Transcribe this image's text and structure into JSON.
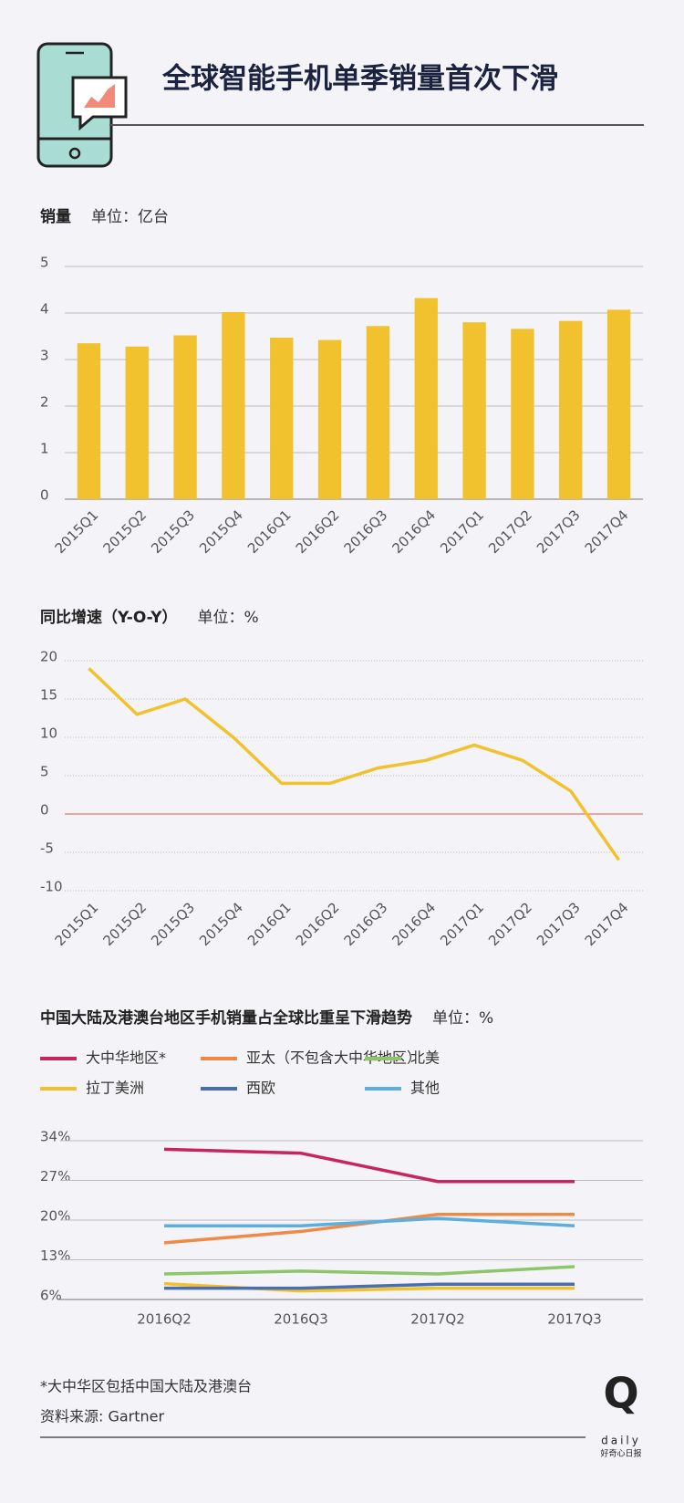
{
  "header": {
    "title": "全球智能手机单季销量首次下滑"
  },
  "chart_data": [
    {
      "type": "bar",
      "title": "销量",
      "subtitle": "单位：亿台",
      "categories": [
        "2015Q1",
        "2015Q2",
        "2015Q3",
        "2015Q4",
        "2016Q1",
        "2016Q2",
        "2016Q3",
        "2016Q4",
        "2017Q1",
        "2017Q2",
        "2017Q3",
        "2017Q4"
      ],
      "values": [
        3.35,
        3.28,
        3.52,
        4.02,
        3.47,
        3.42,
        3.72,
        4.32,
        3.8,
        3.66,
        3.83,
        4.07
      ],
      "color": "#f2c12e",
      "ylim": [
        0,
        5
      ],
      "yticks": [
        0,
        1,
        2,
        3,
        4,
        5
      ],
      "grid": true
    },
    {
      "type": "line",
      "title": "同比增速（Y-O-Y）",
      "subtitle": "单位：%",
      "categories": [
        "2015Q1",
        "2015Q2",
        "2015Q3",
        "2015Q4",
        "2016Q1",
        "2016Q2",
        "2016Q3",
        "2016Q4",
        "2017Q1",
        "2017Q2",
        "2017Q3",
        "2017Q4"
      ],
      "series": [
        {
          "color": "#f2c12e",
          "values": [
            19,
            13,
            15,
            10,
            4,
            4,
            6,
            7,
            9,
            7,
            3,
            -6
          ]
        }
      ],
      "ylim": [
        -10,
        20
      ],
      "yticks": [
        -10,
        -5,
        0,
        5,
        10,
        15,
        20
      ],
      "grid": true,
      "zero_line_color": "#d9534f"
    },
    {
      "type": "line",
      "title": "中国大陆及港澳台地区手机销量占全球比重呈下滑趋势",
      "subtitle": "单位：%",
      "categories": [
        "2016Q2",
        "2016Q3",
        "2017Q2",
        "2017Q3"
      ],
      "series": [
        {
          "name": "大中华地区*",
          "color": "#c8245e",
          "values": [
            32.5,
            31.8,
            26.8,
            26.8
          ]
        },
        {
          "name": "亚太（不包含大中华地区）",
          "color": "#ee8a45",
          "values": [
            16,
            18,
            21,
            21
          ]
        },
        {
          "name": "北美",
          "color": "#8dc66a",
          "values": [
            10.5,
            11,
            10.5,
            11.8
          ]
        },
        {
          "name": "拉丁美洲",
          "color": "#f2c12e",
          "values": [
            8.8,
            7.5,
            8,
            8
          ]
        },
        {
          "name": "西欧",
          "color": "#4a6fb0",
          "values": [
            8,
            8,
            8.7,
            8.7
          ]
        },
        {
          "name": "其他",
          "color": "#5aafe0",
          "values": [
            19,
            19,
            20.3,
            19
          ]
        }
      ],
      "ylim": [
        6,
        34
      ],
      "yticks": [
        {
          "value": 6,
          "label": "6%"
        },
        {
          "value": 13,
          "label": "13%"
        },
        {
          "value": 20,
          "label": "20%"
        },
        {
          "value": 27,
          "label": "27%"
        },
        {
          "value": 34,
          "label": "34%"
        }
      ],
      "grid": true
    }
  ],
  "footer": {
    "note": "*大中华区包括中国大陆及港澳台",
    "source": "资料来源: Gartner",
    "logo": "Q",
    "logo_sub": "daily",
    "logo_caption": "好奇心日报"
  }
}
